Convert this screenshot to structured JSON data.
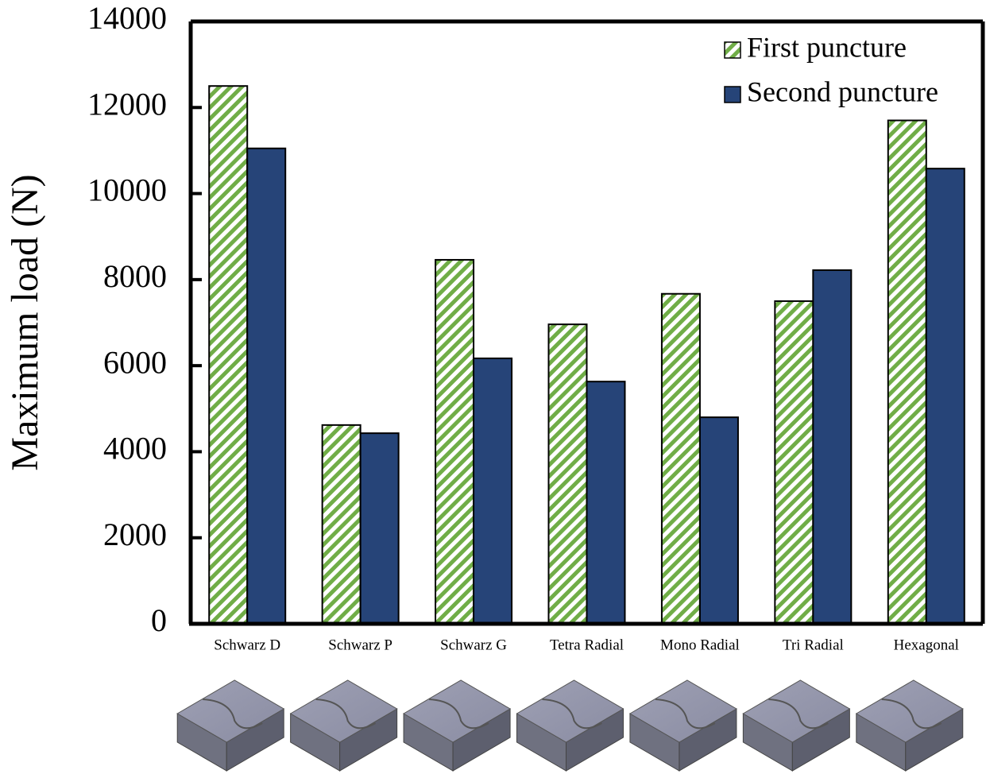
{
  "chart_data": {
    "type": "bar",
    "y_label": "Maximum load (N)",
    "categories": [
      "Schwarz D",
      "Schwarz P",
      "Schwarz G",
      "Tetra Radial",
      "Mono Radial",
      "Tri Radial",
      "Hexagonal"
    ],
    "series": [
      {
        "name": "First puncture",
        "color": "#70ad47",
        "hatch": true,
        "values": [
          12500,
          4620,
          8460,
          6960,
          7670,
          7500,
          11700
        ]
      },
      {
        "name": "Second puncture",
        "color": "#264478",
        "hatch": false,
        "values": [
          11050,
          4430,
          6170,
          5630,
          4800,
          8220,
          10580
        ]
      }
    ],
    "ylim": [
      0,
      14000
    ],
    "yticks": [
      0,
      2000,
      4000,
      6000,
      8000,
      10000,
      12000,
      14000
    ],
    "grid": false,
    "legend": "top-right"
  }
}
